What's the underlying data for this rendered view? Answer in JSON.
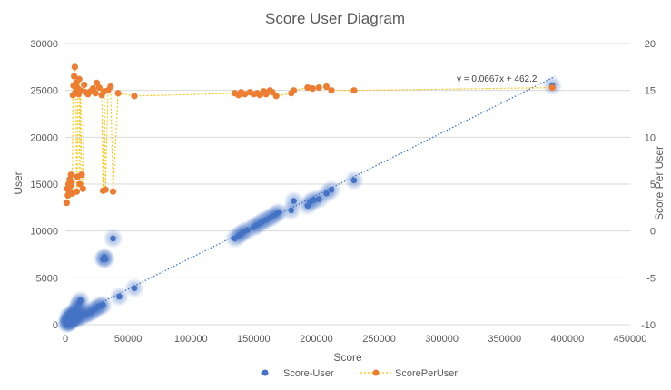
{
  "chart_data": {
    "type": "scatter",
    "title": "Score User Diagram",
    "xlabel": "Score",
    "ylabel": "User",
    "y2label": "Score Per User",
    "xlim": [
      0,
      450000
    ],
    "ylim": [
      0,
      30000
    ],
    "y2lim": [
      -10,
      20
    ],
    "x_ticks": [
      "0",
      "50000",
      "100000",
      "150000",
      "200000",
      "250000",
      "300000",
      "350000",
      "400000",
      "450000"
    ],
    "y_ticks": [
      "0",
      "5000",
      "10000",
      "15000",
      "20000",
      "25000",
      "30000"
    ],
    "y2_ticks": [
      "-10",
      "-5",
      "0",
      "5",
      "10",
      "15",
      "20"
    ],
    "grid": "horizontal",
    "legend_position": "bottom",
    "trendline": {
      "label": "y = 0.0667x + 462.2",
      "slope": 0.0667,
      "intercept": 462.2,
      "x_range": [
        0,
        390000
      ]
    },
    "colors": {
      "score_user": "#4472c4",
      "score_per_user": "#ed7d31",
      "trend": "#4472c4",
      "connector": "#ffc000",
      "grid": "#d9d9d9",
      "text": "#595959"
    },
    "series": [
      {
        "name": "Score-User",
        "axis": "primary",
        "style": "marker-glow",
        "points": [
          [
            1000,
            100
          ],
          [
            1500,
            200
          ],
          [
            2000,
            300
          ],
          [
            2500,
            350
          ],
          [
            3000,
            400
          ],
          [
            3500,
            450
          ],
          [
            4000,
            500
          ],
          [
            4500,
            550
          ],
          [
            5000,
            600
          ],
          [
            5500,
            650
          ],
          [
            6000,
            700
          ],
          [
            6500,
            800
          ],
          [
            7000,
            900
          ],
          [
            7500,
            1000
          ],
          [
            8000,
            1200
          ],
          [
            8500,
            1400
          ],
          [
            9000,
            1700
          ],
          [
            10000,
            2000
          ],
          [
            11000,
            2300
          ],
          [
            12000,
            2600
          ],
          [
            3000,
            200
          ],
          [
            4000,
            600
          ],
          [
            5000,
            900
          ],
          [
            6000,
            1100
          ],
          [
            7000,
            1300
          ],
          [
            2000,
            800
          ],
          [
            3000,
            1000
          ],
          [
            8000,
            600
          ],
          [
            9000,
            900
          ],
          [
            10000,
            700
          ],
          [
            12000,
            900
          ],
          [
            14000,
            1000
          ],
          [
            16000,
            1100
          ],
          [
            18000,
            1200
          ],
          [
            20000,
            1300
          ],
          [
            22000,
            1500
          ],
          [
            24000,
            1700
          ],
          [
            26000,
            1900
          ],
          [
            28000,
            2000
          ],
          [
            30000,
            2100
          ],
          [
            30000,
            7000
          ],
          [
            31000,
            7200
          ],
          [
            32000,
            7000
          ],
          [
            38000,
            9200
          ],
          [
            43000,
            3000
          ],
          [
            55000,
            3900
          ],
          [
            135000,
            9200
          ],
          [
            138000,
            9500
          ],
          [
            140000,
            9700
          ],
          [
            142000,
            9900
          ],
          [
            145000,
            10100
          ],
          [
            150000,
            10400
          ],
          [
            152000,
            10600
          ],
          [
            155000,
            10800
          ],
          [
            157000,
            11000
          ],
          [
            160000,
            11200
          ],
          [
            163000,
            11400
          ],
          [
            165000,
            11600
          ],
          [
            168000,
            11800
          ],
          [
            170000,
            12000
          ],
          [
            180000,
            12200
          ],
          [
            182000,
            13200
          ],
          [
            193000,
            12700
          ],
          [
            195000,
            13100
          ],
          [
            198000,
            13300
          ],
          [
            202000,
            13400
          ],
          [
            208000,
            14000
          ],
          [
            212000,
            14400
          ],
          [
            230000,
            15400
          ],
          [
            388000,
            25500
          ]
        ]
      },
      {
        "name": "ScorePerUser",
        "axis": "secondary",
        "style": "line-marker",
        "points": [
          [
            1000,
            3.0
          ],
          [
            1500,
            4.5
          ],
          [
            2000,
            3.8
          ],
          [
            2500,
            5.0
          ],
          [
            3000,
            4.2
          ],
          [
            3500,
            5.5
          ],
          [
            4000,
            4.8
          ],
          [
            4500,
            6.0
          ],
          [
            5000,
            5.2
          ],
          [
            5500,
            4.0
          ],
          [
            6000,
            14.5
          ],
          [
            6500,
            15.5
          ],
          [
            7000,
            16.5
          ],
          [
            7500,
            17.5
          ],
          [
            8000,
            14.8
          ],
          [
            8500,
            15.8
          ],
          [
            9000,
            4.2
          ],
          [
            9500,
            5.8
          ],
          [
            10000,
            15.2
          ],
          [
            10500,
            14.6
          ],
          [
            11000,
            16.2
          ],
          [
            11500,
            5.0
          ],
          [
            12000,
            15.0
          ],
          [
            13000,
            6.0
          ],
          [
            14000,
            4.5
          ],
          [
            15000,
            15.6
          ],
          [
            16000,
            14.8
          ],
          [
            18000,
            14.6
          ],
          [
            20000,
            14.9
          ],
          [
            22000,
            15.2
          ],
          [
            24000,
            14.7
          ],
          [
            25000,
            15.8
          ],
          [
            27000,
            15.3
          ],
          [
            29000,
            14.5
          ],
          [
            30000,
            4.3
          ],
          [
            31000,
            14.9
          ],
          [
            32000,
            4.4
          ],
          [
            34000,
            15.0
          ],
          [
            36000,
            15.4
          ],
          [
            38000,
            4.2
          ],
          [
            42000,
            14.7
          ],
          [
            55000,
            14.4
          ],
          [
            135000,
            14.7
          ],
          [
            138000,
            14.5
          ],
          [
            140000,
            14.8
          ],
          [
            143000,
            14.6
          ],
          [
            147000,
            14.8
          ],
          [
            150000,
            14.6
          ],
          [
            153000,
            14.7
          ],
          [
            155000,
            14.5
          ],
          [
            158000,
            14.9
          ],
          [
            160000,
            14.6
          ],
          [
            163000,
            15.0
          ],
          [
            165000,
            14.8
          ],
          [
            168000,
            14.4
          ],
          [
            180000,
            14.7
          ],
          [
            182000,
            15.0
          ],
          [
            193000,
            15.3
          ],
          [
            197000,
            15.2
          ],
          [
            202000,
            15.3
          ],
          [
            208000,
            15.4
          ],
          [
            212000,
            15.0
          ],
          [
            230000,
            15.0
          ],
          [
            388000,
            15.3
          ]
        ]
      }
    ]
  }
}
